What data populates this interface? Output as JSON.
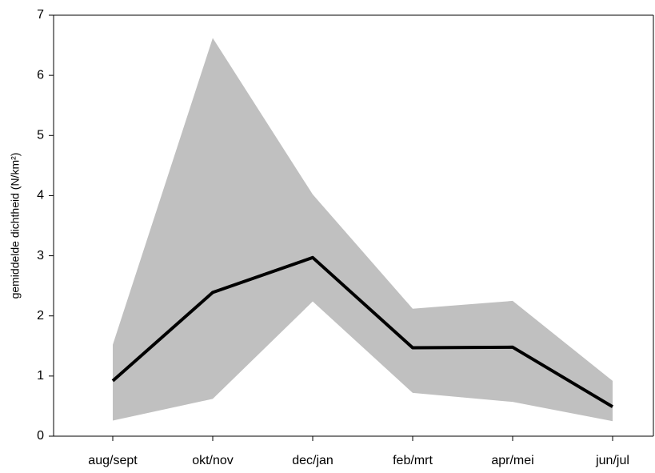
{
  "chart_data": {
    "type": "line",
    "ylabel": "gemiddelde dichtheid (N/km²)",
    "categories": [
      "aug/sept",
      "okt/nov",
      "dec/jan",
      "feb/mrt",
      "apr/mei",
      "jun/jul"
    ],
    "series": [
      {
        "color": "#000000",
        "values": [
          0.92,
          2.39,
          2.97,
          1.47,
          1.48,
          0.49
        ]
      }
    ],
    "band": {
      "color": "#c0c0c0",
      "upper": [
        1.52,
        6.62,
        4.02,
        2.12,
        2.25,
        0.92
      ],
      "lower": [
        0.26,
        0.62,
        2.24,
        0.72,
        0.57,
        0.25
      ]
    },
    "ylim": [
      0,
      7
    ],
    "yticks": [
      0,
      1,
      2,
      3,
      4,
      5,
      6,
      7
    ],
    "grid": false
  }
}
